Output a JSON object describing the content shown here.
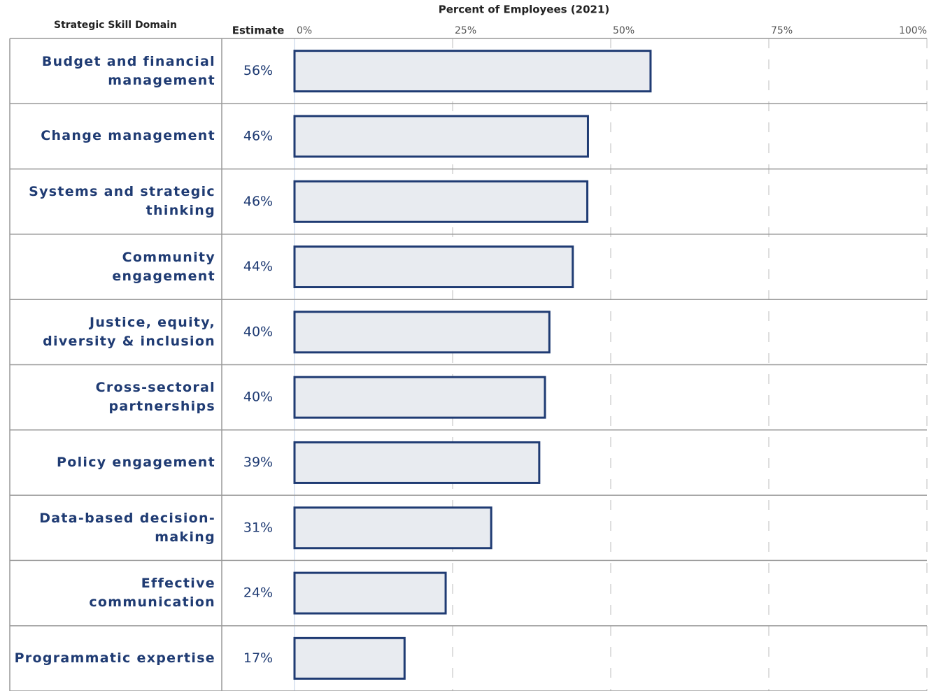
{
  "chart_data": {
    "type": "bar",
    "orientation": "horizontal",
    "title": "Percent of Employees (2021)",
    "category_header": "Strategic Skill Domain",
    "value_header": "Estimate",
    "categories": [
      "Budget and financial management",
      "Change management",
      "Systems and strategic thinking",
      "Community engagement",
      "Justice, equity, diversity & inclusion",
      "Cross-sectoral partnerships",
      "Policy engagement",
      "Data-based decision-making",
      "Effective communication",
      "Programmatic expertise"
    ],
    "values": [
      56.3,
      46.4,
      46.3,
      44,
      40.3,
      39.6,
      38.7,
      31.1,
      23.9,
      17.4
    ],
    "value_labels": [
      "56%",
      "46%",
      "46%",
      "44%",
      "40%",
      "40%",
      "39%",
      "31%",
      "24%",
      "17%"
    ],
    "color": "#e8ebf0",
    "edge_color": "#1f3b73",
    "xlim": [
      0,
      100
    ],
    "xticks": [
      {
        "value": 0,
        "label": "0%"
      },
      {
        "value": 25,
        "label": "25%"
      },
      {
        "value": 50,
        "label": "50%"
      },
      {
        "value": 75,
        "label": "75%"
      },
      {
        "value": 100,
        "label": "100%"
      }
    ],
    "grid": true
  }
}
